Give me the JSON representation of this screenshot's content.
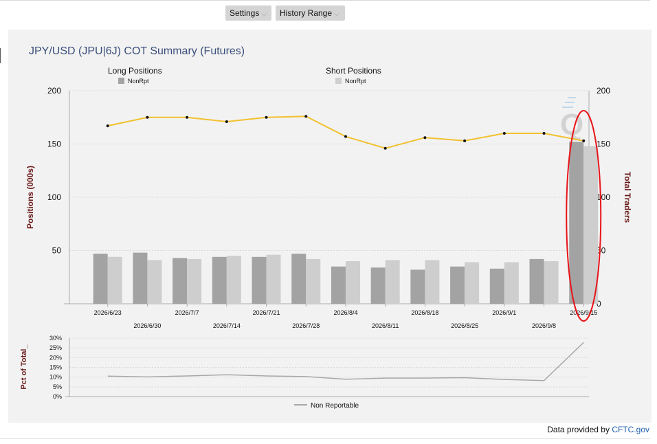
{
  "toolbar": {
    "settings_label": "Settings",
    "history_label": "History Range"
  },
  "footer": {
    "prefix": "Data provided by ",
    "link": "CFTC.gov"
  },
  "chart_data": [
    {
      "type": "bar",
      "title": "JPY/USD (JPU|6J) COT Summary (Futures)",
      "ylabel": "Positions (000s)",
      "y2label": "Total Traders",
      "ylim": [
        0,
        200
      ],
      "y2lim": [
        0,
        200
      ],
      "yticks": [
        50,
        100,
        150,
        200
      ],
      "y2ticks": [
        0,
        50,
        100,
        150,
        200
      ],
      "categories": [
        "2026/6/23",
        "2026/6/30",
        "2026/7/7",
        "2026/7/14",
        "2026/7/21",
        "2026/7/28",
        "2026/8/4",
        "2026/8/11",
        "2026/8/18",
        "2026/8/25",
        "2026/9/1",
        "2026/9/8",
        "2026/9/15"
      ],
      "legend_groups": [
        {
          "title": "Long Positions",
          "item": "NonRpt",
          "color": "#a3a3a3"
        },
        {
          "title": "Short Positions",
          "item": "NonRpt",
          "color": "#cecece"
        }
      ],
      "series": [
        {
          "name": "NonRpt",
          "group": "Long Positions",
          "color": "#a3a3a3",
          "values": [
            47,
            48,
            43,
            44,
            44,
            47,
            35,
            34,
            32,
            35,
            33,
            42,
            152
          ]
        },
        {
          "name": "NonRpt",
          "group": "Short Positions",
          "color": "#cecece",
          "values": [
            44,
            41,
            42,
            45,
            46,
            42,
            40,
            41,
            41,
            39,
            39,
            40,
            148
          ]
        },
        {
          "type": "line",
          "axis": "right",
          "color": "#f2c12e",
          "values": [
            167,
            175,
            175,
            171,
            175,
            176,
            157,
            146,
            156,
            153,
            160,
            160,
            153
          ]
        }
      ],
      "grid": true,
      "annotation": "red ellipse around 2026/9/15",
      "colors": {
        "highlight": "#e8141a",
        "title": "#3a4f7a",
        "axis_label": "#6b1a1a"
      }
    },
    {
      "type": "line",
      "ylabel": "Pct of Total_",
      "ylim": [
        0,
        30
      ],
      "yticks": [
        "0%",
        "5%",
        "10%",
        "15%",
        "20%",
        "25%",
        "30%"
      ],
      "series": [
        {
          "name": "Non Reportable",
          "color": "#a8a8a8",
          "values": [
            10.5,
            10.1,
            10.6,
            11.2,
            10.6,
            10.3,
            8.9,
            9.5,
            9.5,
            9.7,
            8.8,
            8.2,
            27.8
          ]
        }
      ],
      "grid": true,
      "legend": "bottom"
    }
  ]
}
